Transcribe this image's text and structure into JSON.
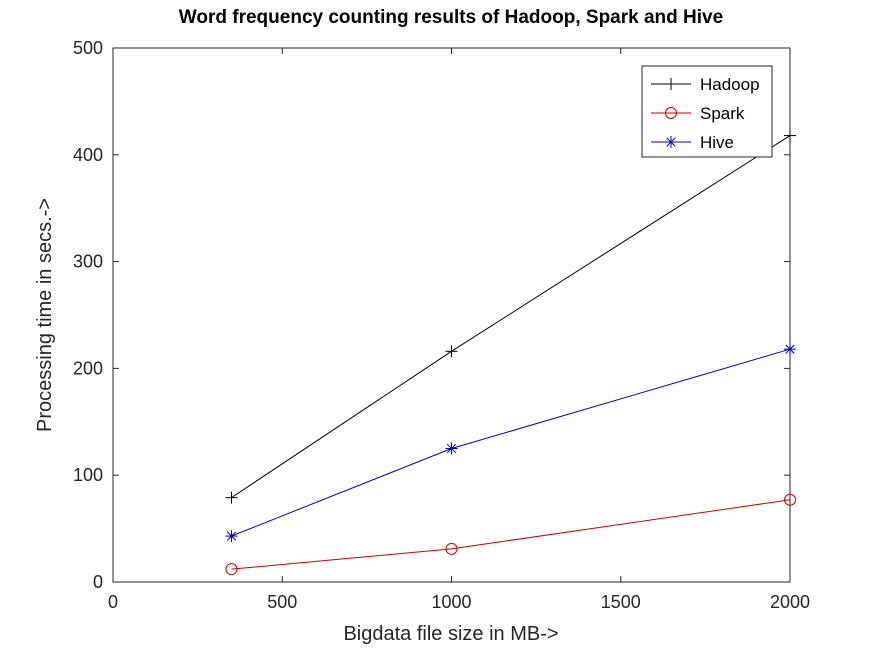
{
  "chart_data": {
    "type": "line",
    "title": "Word frequency counting results of Hadoop, Spark and Hive",
    "xlabel": "Bigdata file size in MB->",
    "ylabel": "Processing time in secs.->",
    "xlim": [
      0,
      2000
    ],
    "ylim": [
      0,
      500
    ],
    "xticks": [
      0,
      500,
      1000,
      1500,
      2000
    ],
    "yticks": [
      0,
      100,
      200,
      300,
      400,
      500
    ],
    "grid": false,
    "legend_position": "top-right",
    "x": [
      350,
      1000,
      2000
    ],
    "series": [
      {
        "name": "Hadoop",
        "values": [
          79,
          216,
          418
        ],
        "color": "#000000",
        "marker": "plus"
      },
      {
        "name": "Spark",
        "values": [
          12,
          31,
          77
        ],
        "color": "#cc0000",
        "marker": "circle"
      },
      {
        "name": "Hive",
        "values": [
          43,
          125,
          218
        ],
        "color": "#0000cc",
        "marker": "asterisk"
      }
    ]
  }
}
